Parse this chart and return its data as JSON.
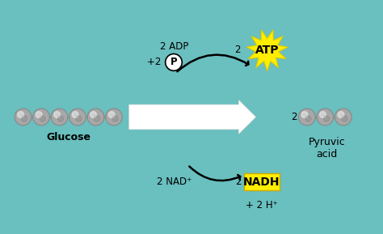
{
  "bg_color": "#6abfbf",
  "fig_width": 4.74,
  "fig_height": 2.89,
  "glucose_label": "Glucose",
  "pyruvic_label": "Pyruvic\nacid",
  "atp_label": "ATP",
  "nad_label": "2 NAD⁺",
  "nadh_label": "NADH",
  "nadh_prefix": "2 ",
  "nadh_suffix": "+ 2 H⁺",
  "atp_prefix": "2 ",
  "sphere_color": "#a8a8a8",
  "sphere_highlight": "#d8d8d8",
  "sphere_edge": "#888888",
  "curve_arrow_color": "black",
  "atp_star_color": "#ffee00",
  "nadh_bg": "#ffee00",
  "p_circle_color": "white",
  "text_color": "black",
  "adp_text": "2 ADP",
  "adp_p_text": "+2 ",
  "p_text": "P",
  "two_text": "2",
  "two_nadh_text": "2",
  "arrow_fc": "white",
  "arrow_ec": "#dddddd",
  "glucose_fontsize": 9,
  "label_fontsize": 8.5,
  "atp_fontsize": 10,
  "nadh_fontsize": 10
}
